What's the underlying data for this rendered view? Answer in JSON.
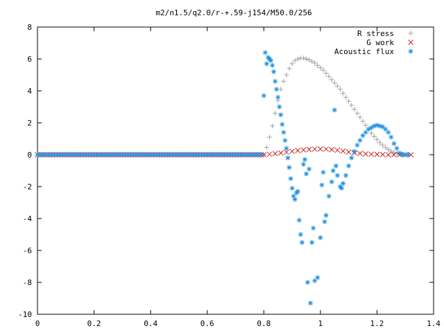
{
  "chart_data": {
    "type": "scatter",
    "title": "m2/n1.5/q2.0/r-+.59-j154/M50.0/256",
    "xlabel": "",
    "ylabel": "",
    "xlim": [
      0,
      1.4
    ],
    "ylim": [
      -10,
      8
    ],
    "x_ticks": [
      "0",
      "0.2",
      "0.4",
      "0.6",
      "0.8",
      "1",
      "1.2",
      "1.4"
    ],
    "y_ticks": [
      "8",
      "6",
      "4",
      "2",
      "0",
      "-2",
      "-4",
      "-6",
      "-8",
      "-10"
    ],
    "grid": false,
    "legend_position": "top-right",
    "series": [
      {
        "name": "R stress",
        "marker": "+",
        "color": "#a0a0a0",
        "points": [
          [
            0.8,
            0.0
          ],
          [
            0.81,
            0.45
          ],
          [
            0.82,
            1.1
          ],
          [
            0.83,
            1.8
          ],
          [
            0.84,
            2.6
          ],
          [
            0.85,
            3.4
          ],
          [
            0.86,
            4.1
          ],
          [
            0.87,
            4.6
          ],
          [
            0.88,
            5.0
          ],
          [
            0.89,
            5.4
          ],
          [
            0.9,
            5.7
          ],
          [
            0.91,
            5.9
          ],
          [
            0.92,
            6.0
          ],
          [
            0.93,
            6.05
          ],
          [
            0.94,
            6.05
          ],
          [
            0.95,
            6.0
          ],
          [
            0.96,
            5.95
          ],
          [
            0.97,
            5.85
          ],
          [
            0.98,
            5.75
          ],
          [
            0.99,
            5.6
          ],
          [
            1.0,
            5.45
          ],
          [
            1.01,
            5.3
          ],
          [
            1.02,
            5.1
          ],
          [
            1.03,
            4.9
          ],
          [
            1.04,
            4.7
          ],
          [
            1.05,
            4.5
          ],
          [
            1.06,
            4.3
          ],
          [
            1.07,
            4.1
          ],
          [
            1.08,
            3.85
          ],
          [
            1.09,
            3.6
          ],
          [
            1.1,
            3.35
          ],
          [
            1.11,
            3.1
          ],
          [
            1.12,
            2.85
          ],
          [
            1.13,
            2.6
          ],
          [
            1.14,
            2.35
          ],
          [
            1.15,
            2.1
          ],
          [
            1.16,
            1.85
          ],
          [
            1.17,
            1.6
          ],
          [
            1.18,
            1.35
          ],
          [
            1.19,
            1.15
          ],
          [
            1.2,
            0.95
          ],
          [
            1.21,
            0.75
          ],
          [
            1.22,
            0.6
          ],
          [
            1.23,
            0.45
          ],
          [
            1.24,
            0.33
          ],
          [
            1.25,
            0.22
          ],
          [
            1.26,
            0.14
          ],
          [
            1.27,
            0.08
          ],
          [
            1.28,
            0.04
          ],
          [
            1.29,
            0.02
          ],
          [
            1.3,
            0.0
          ]
        ]
      },
      {
        "name": "G work",
        "marker": "x",
        "color": "#cc2222",
        "points": [
          [
            0.8,
            0.0
          ],
          [
            0.82,
            0.03
          ],
          [
            0.84,
            0.07
          ],
          [
            0.86,
            0.11
          ],
          [
            0.88,
            0.16
          ],
          [
            0.9,
            0.21
          ],
          [
            0.92,
            0.26
          ],
          [
            0.94,
            0.3
          ],
          [
            0.96,
            0.33
          ],
          [
            0.98,
            0.35
          ],
          [
            1.0,
            0.36
          ],
          [
            1.02,
            0.35
          ],
          [
            1.04,
            0.32
          ],
          [
            1.06,
            0.28
          ],
          [
            1.08,
            0.23
          ],
          [
            1.1,
            0.17
          ],
          [
            1.12,
            0.12
          ],
          [
            1.14,
            0.08
          ],
          [
            1.16,
            0.05
          ],
          [
            1.18,
            0.03
          ],
          [
            1.2,
            0.02
          ],
          [
            1.22,
            0.01
          ],
          [
            1.24,
            0.0
          ],
          [
            1.26,
            0.0
          ],
          [
            1.28,
            0.0
          ],
          [
            1.3,
            0.0
          ],
          [
            1.32,
            0.0
          ]
        ]
      },
      {
        "name": "Acoustic flux",
        "marker": "*",
        "color": "#1a8fe0",
        "points": [
          [
            0.8,
            3.7
          ],
          [
            0.805,
            6.4
          ],
          [
            0.81,
            5.7
          ],
          [
            0.815,
            6.1
          ],
          [
            0.82,
            6.0
          ],
          [
            0.825,
            5.9
          ],
          [
            0.83,
            5.6
          ],
          [
            0.835,
            5.2
          ],
          [
            0.84,
            4.6
          ],
          [
            0.845,
            4.1
          ],
          [
            0.85,
            3.6
          ],
          [
            0.855,
            3.0
          ],
          [
            0.86,
            2.5
          ],
          [
            0.865,
            1.9
          ],
          [
            0.87,
            1.4
          ],
          [
            0.875,
            0.9
          ],
          [
            0.88,
            0.4
          ],
          [
            0.885,
            -0.2
          ],
          [
            0.89,
            -0.8
          ],
          [
            0.895,
            -1.5
          ],
          [
            0.9,
            -2.1
          ],
          [
            0.905,
            -2.6
          ],
          [
            0.91,
            -2.8
          ],
          [
            0.915,
            -2.4
          ],
          [
            0.92,
            -2.3
          ],
          [
            0.925,
            -4.1
          ],
          [
            0.93,
            -5.0
          ],
          [
            0.935,
            -5.5
          ],
          [
            0.94,
            -0.6
          ],
          [
            0.945,
            -0.3
          ],
          [
            0.95,
            -1.2
          ],
          [
            0.955,
            -8.0
          ],
          [
            0.96,
            -0.9
          ],
          [
            0.965,
            -9.3
          ],
          [
            0.97,
            -5.5
          ],
          [
            0.975,
            -4.6
          ],
          [
            0.98,
            -7.9
          ],
          [
            0.99,
            -7.7
          ],
          [
            1.0,
            -5.2
          ],
          [
            1.005,
            -1.9
          ],
          [
            1.01,
            -1.1
          ],
          [
            1.015,
            -4.2
          ],
          [
            1.02,
            -3.8
          ],
          [
            1.03,
            -2.6
          ],
          [
            1.04,
            -1.7
          ],
          [
            1.045,
            -1.0
          ],
          [
            1.05,
            2.8
          ],
          [
            1.055,
            -0.7
          ],
          [
            1.06,
            -1.3
          ],
          [
            1.07,
            -2.0
          ],
          [
            1.075,
            -2.1
          ],
          [
            1.08,
            -1.8
          ],
          [
            1.09,
            -1.3
          ],
          [
            1.1,
            -0.7
          ],
          [
            1.11,
            -0.2
          ],
          [
            1.12,
            0.2
          ],
          [
            1.13,
            0.6
          ],
          [
            1.14,
            0.9
          ],
          [
            1.15,
            1.2
          ],
          [
            1.16,
            1.4
          ],
          [
            1.17,
            1.6
          ],
          [
            1.18,
            1.7
          ],
          [
            1.19,
            1.8
          ],
          [
            1.2,
            1.85
          ],
          [
            1.21,
            1.8
          ],
          [
            1.22,
            1.75
          ],
          [
            1.23,
            1.6
          ],
          [
            1.24,
            1.4
          ],
          [
            1.25,
            1.1
          ],
          [
            1.26,
            0.7
          ],
          [
            1.27,
            0.4
          ],
          [
            1.28,
            0.1
          ],
          [
            1.29,
            0.0
          ],
          [
            1.3,
            0.0
          ],
          [
            1.31,
            0.0
          ]
        ]
      }
    ]
  }
}
